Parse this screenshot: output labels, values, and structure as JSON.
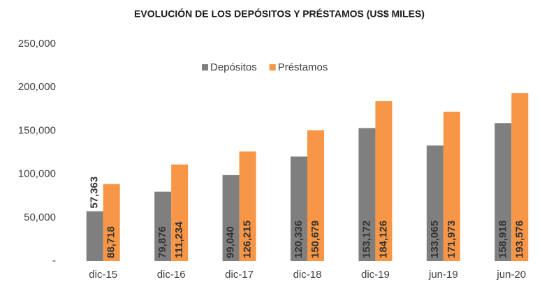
{
  "chart_data": {
    "type": "bar",
    "title": "EVOLUCIÓN DE LOS DEPÓSITOS Y PRÉSTAMOS (US$ MILES)",
    "categories": [
      "dic-15",
      "dic-16",
      "dic-17",
      "dic-18",
      "dic-19",
      "jun-19",
      "jun-20"
    ],
    "series": [
      {
        "name": "Depósitos",
        "color": "#7f7f7f",
        "values": [
          57363,
          79876,
          99040,
          120336,
          153172,
          133065,
          158918
        ],
        "value_labels": [
          "57,363",
          "79,876",
          "99,040",
          "120,336",
          "153,172",
          "133,065",
          "158,918"
        ]
      },
      {
        "name": "Préstamos",
        "color": "#f79646",
        "values": [
          88718,
          111234,
          126215,
          150679,
          184126,
          171973,
          193576
        ],
        "value_labels": [
          "88,718",
          "111,234",
          "126,215",
          "150,679",
          "184,126",
          "171,973",
          "193,576"
        ]
      }
    ],
    "ylim": [
      0,
      250000
    ],
    "yticks": [
      {
        "value": 0,
        "label": "-"
      },
      {
        "value": 50000,
        "label": "50,000"
      },
      {
        "value": 100000,
        "label": "100,000"
      },
      {
        "value": 150000,
        "label": "150,000"
      },
      {
        "value": 200000,
        "label": "200,000"
      },
      {
        "value": 250000,
        "label": "250,000"
      }
    ],
    "legend": "top",
    "grid": false
  }
}
